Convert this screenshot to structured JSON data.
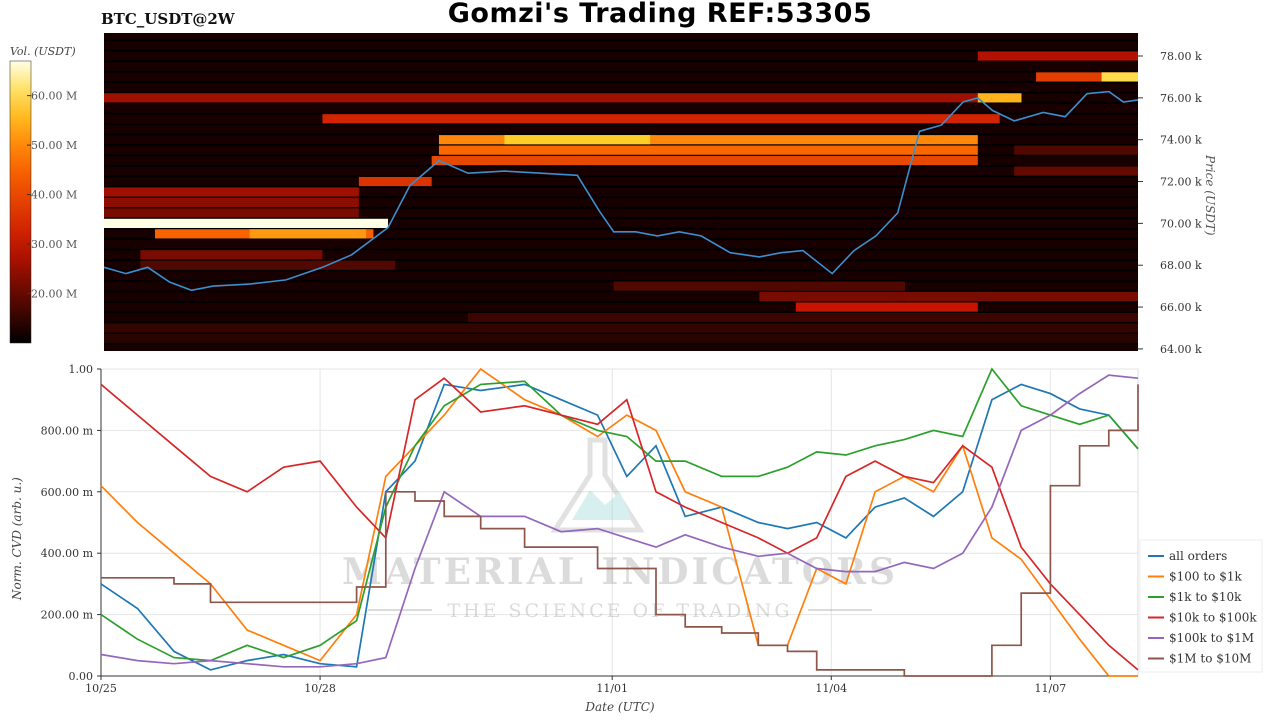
{
  "header": {
    "symbol": "BTC_USDT@2W",
    "title": "Gomzi's Trading REF:53305"
  },
  "watermark": {
    "line1": "MATERIAL INDICATORS",
    "line2": "THE SCIENCE OF TRADING"
  },
  "colors": {
    "all_orders": "#1f77b4",
    "r100_1k": "#ff7f0e",
    "r1k_10k": "#2ca02c",
    "r10k_100k": "#d62728",
    "r100k_1m": "#9467bd",
    "r1m_10m": "#8c564b",
    "price_line": "#3a8fd0"
  },
  "chart_data": [
    {
      "type": "heatmap",
      "colorbar": {
        "label": "Vol. (USDT)",
        "ticks": [
          "20.00 M",
          "30.00 M",
          "40.00 M",
          "50.00 M",
          "60.00 M"
        ],
        "tick_values": [
          20,
          30,
          40,
          50,
          60
        ],
        "range": [
          10,
          67
        ]
      },
      "y_axis": {
        "label": "Price (USDT)",
        "ticks": [
          "64.00 k",
          "66.00 k",
          "68.00 k",
          "70.00 k",
          "72.00 k",
          "74.00 k",
          "76.00 k",
          "78.00 k"
        ],
        "tick_values": [
          64,
          66,
          68,
          70,
          72,
          74,
          76,
          78
        ],
        "range": [
          63.9,
          79.1
        ]
      },
      "x_range_days": [
        0,
        14.2
      ],
      "walls": [
        {
          "price": 70.0,
          "x0": 0,
          "x1": 3.9,
          "vol": 67
        },
        {
          "price": 69.5,
          "x0": 0.7,
          "x1": 3.7,
          "vol": 45
        },
        {
          "price": 69.5,
          "x0": 2.0,
          "x1": 3.6,
          "vol": 52
        },
        {
          "price": 73.5,
          "x0": 4.6,
          "x1": 12.0,
          "vol": 46
        },
        {
          "price": 74.0,
          "x0": 4.6,
          "x1": 12.0,
          "vol": 50
        },
        {
          "price": 74.0,
          "x0": 5.5,
          "x1": 7.5,
          "vol": 58
        },
        {
          "price": 73.0,
          "x0": 4.5,
          "x1": 12.0,
          "vol": 40
        },
        {
          "price": 75.0,
          "x0": 3.0,
          "x1": 12.3,
          "vol": 33
        },
        {
          "price": 76.0,
          "x0": 0,
          "x1": 12.4,
          "vol": 26
        },
        {
          "price": 76.0,
          "x0": 12.0,
          "x1": 12.6,
          "vol": 55
        },
        {
          "price": 77.0,
          "x0": 12.8,
          "x1": 14.2,
          "vol": 38
        },
        {
          "price": 77.0,
          "x0": 13.7,
          "x1": 14.2,
          "vol": 60
        },
        {
          "price": 78.0,
          "x0": 12.0,
          "x1": 14.2,
          "vol": 28
        },
        {
          "price": 72.0,
          "x0": 3.5,
          "x1": 4.5,
          "vol": 36
        },
        {
          "price": 71.5,
          "x0": 0,
          "x1": 3.5,
          "vol": 26
        },
        {
          "price": 71.0,
          "x0": 0,
          "x1": 3.5,
          "vol": 24
        },
        {
          "price": 70.5,
          "x0": 0,
          "x1": 3.5,
          "vol": 22
        },
        {
          "price": 66.0,
          "x0": 9.5,
          "x1": 12.0,
          "vol": 30
        },
        {
          "price": 66.5,
          "x0": 9.0,
          "x1": 14.2,
          "vol": 22
        },
        {
          "price": 67.0,
          "x0": 7.0,
          "x1": 11.0,
          "vol": 18
        },
        {
          "price": 65.5,
          "x0": 5.0,
          "x1": 14.2,
          "vol": 16
        },
        {
          "price": 65.0,
          "x0": 0,
          "x1": 14.2,
          "vol": 15
        },
        {
          "price": 64.5,
          "x0": 0,
          "x1": 14.2,
          "vol": 14
        },
        {
          "price": 68.5,
          "x0": 0.5,
          "x1": 3.0,
          "vol": 22
        },
        {
          "price": 68.0,
          "x0": 0.5,
          "x1": 4.0,
          "vol": 18
        },
        {
          "price": 72.5,
          "x0": 12.5,
          "x1": 14.2,
          "vol": 20
        },
        {
          "price": 73.5,
          "x0": 12.5,
          "x1": 14.2,
          "vol": 18
        }
      ],
      "price_series": {
        "x": [
          0,
          0.3,
          0.6,
          0.9,
          1.2,
          1.5,
          2.0,
          2.5,
          3.0,
          3.4,
          3.9,
          4.2,
          4.6,
          5.0,
          5.5,
          6.0,
          6.5,
          6.8,
          7.0,
          7.3,
          7.6,
          7.9,
          8.2,
          8.6,
          9.0,
          9.3,
          9.6,
          10.0,
          10.3,
          10.6,
          10.9,
          11.2,
          11.5,
          11.8,
          12.0,
          12.2,
          12.5,
          12.9,
          13.2,
          13.5,
          13.8,
          14.0,
          14.2
        ],
        "y": [
          67.9,
          67.6,
          67.9,
          67.2,
          66.8,
          67.0,
          67.1,
          67.3,
          67.9,
          68.5,
          69.8,
          71.8,
          73.0,
          72.4,
          72.5,
          72.4,
          72.3,
          70.6,
          69.6,
          69.6,
          69.4,
          69.6,
          69.4,
          68.6,
          68.4,
          68.6,
          68.7,
          67.6,
          68.7,
          69.4,
          70.5,
          74.4,
          74.7,
          75.8,
          76.0,
          75.4,
          74.9,
          75.3,
          75.1,
          76.2,
          76.3,
          75.8,
          75.9
        ]
      }
    },
    {
      "type": "line",
      "ylabel": "Norm. CVD (arb. u.)",
      "xlabel": "Date (UTC)",
      "ylim": [
        0,
        1
      ],
      "xlim": [
        0,
        14.2
      ],
      "y_ticks": [
        "0.00",
        "200.00 m",
        "400.00 m",
        "600.00 m",
        "800.00 m",
        "1.00"
      ],
      "y_tick_values": [
        0,
        0.2,
        0.4,
        0.6,
        0.8,
        1.0
      ],
      "x_ticks": [
        "10/25",
        "10/28",
        "11/01",
        "11/04",
        "11/07"
      ],
      "x_tick_values": [
        0,
        3,
        7,
        10,
        13
      ],
      "grid": true,
      "legend_position": "bottom-right",
      "x": [
        0,
        0.5,
        1,
        1.5,
        2,
        2.5,
        3,
        3.5,
        3.9,
        4.3,
        4.7,
        5.2,
        5.8,
        6.3,
        6.8,
        7.2,
        7.6,
        8.0,
        8.5,
        9.0,
        9.4,
        9.8,
        10.2,
        10.6,
        11.0,
        11.4,
        11.8,
        12.2,
        12.6,
        13.0,
        13.4,
        13.8,
        14.2
      ],
      "series": [
        {
          "name": "all orders",
          "values": [
            0.3,
            0.22,
            0.08,
            0.02,
            0.05,
            0.07,
            0.04,
            0.03,
            0.6,
            0.7,
            0.95,
            0.93,
            0.95,
            0.9,
            0.85,
            0.65,
            0.75,
            0.52,
            0.55,
            0.5,
            0.48,
            0.5,
            0.45,
            0.55,
            0.58,
            0.52,
            0.6,
            0.9,
            0.95,
            0.92,
            0.87,
            0.85,
            0.74
          ]
        },
        {
          "name": "$100 to $1k",
          "values": [
            0.62,
            0.5,
            0.4,
            0.3,
            0.15,
            0.1,
            0.05,
            0.2,
            0.65,
            0.75,
            0.85,
            1.0,
            0.9,
            0.85,
            0.78,
            0.85,
            0.8,
            0.6,
            0.55,
            0.1,
            0.1,
            0.35,
            0.3,
            0.6,
            0.65,
            0.6,
            0.75,
            0.45,
            0.38,
            0.25,
            0.12,
            0.0,
            0.0
          ]
        },
        {
          "name": "$1k to $10k",
          "values": [
            0.2,
            0.12,
            0.06,
            0.05,
            0.1,
            0.06,
            0.1,
            0.18,
            0.55,
            0.75,
            0.88,
            0.95,
            0.96,
            0.85,
            0.8,
            0.78,
            0.7,
            0.7,
            0.65,
            0.65,
            0.68,
            0.73,
            0.72,
            0.75,
            0.77,
            0.8,
            0.78,
            1.0,
            0.88,
            0.85,
            0.82,
            0.85,
            0.74
          ]
        },
        {
          "name": "$10k to $100k",
          "values": [
            0.95,
            0.85,
            0.75,
            0.65,
            0.6,
            0.68,
            0.7,
            0.55,
            0.45,
            0.9,
            0.97,
            0.86,
            0.88,
            0.85,
            0.82,
            0.9,
            0.6,
            0.55,
            0.5,
            0.45,
            0.4,
            0.45,
            0.65,
            0.7,
            0.65,
            0.63,
            0.75,
            0.68,
            0.42,
            0.3,
            0.2,
            0.1,
            0.02
          ]
        },
        {
          "name": "$100k to $1M",
          "values": [
            0.07,
            0.05,
            0.04,
            0.05,
            0.04,
            0.03,
            0.03,
            0.04,
            0.06,
            0.35,
            0.6,
            0.52,
            0.52,
            0.47,
            0.48,
            0.45,
            0.42,
            0.46,
            0.42,
            0.39,
            0.4,
            0.35,
            0.34,
            0.34,
            0.37,
            0.35,
            0.4,
            0.55,
            0.8,
            0.85,
            0.92,
            0.98,
            0.97
          ]
        },
        {
          "name": "$1M to $10M",
          "values": [
            0.32,
            0.32,
            0.3,
            0.24,
            0.24,
            0.24,
            0.24,
            0.29,
            0.6,
            0.57,
            0.52,
            0.48,
            0.42,
            0.42,
            0.35,
            0.35,
            0.2,
            0.16,
            0.14,
            0.1,
            0.08,
            0.02,
            0.02,
            0.02,
            0.0,
            0.0,
            0.0,
            0.1,
            0.27,
            0.62,
            0.75,
            0.8,
            0.95
          ]
        }
      ]
    }
  ]
}
